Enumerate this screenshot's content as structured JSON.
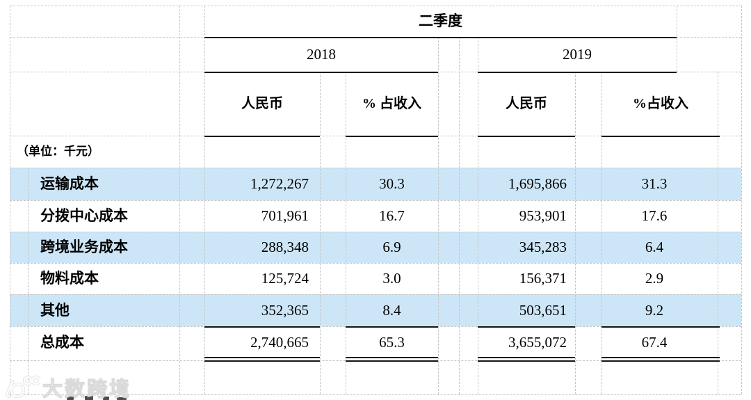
{
  "table": {
    "quarter_header": "二季度",
    "year_left": "2018",
    "year_right": "2019",
    "unit_note": "（单位：千元）",
    "columns": {
      "rmb_2018": "人民币",
      "pct_2018": "% 占收入",
      "rmb_2019": "人民币",
      "pct_2019": "%占收入"
    },
    "rows": [
      {
        "label": "运输成本",
        "rmb_2018": "1,272,267",
        "pct_2018": "30.3",
        "rmb_2019": "1,695,866",
        "pct_2019": "31.3",
        "highlight": true,
        "total": false
      },
      {
        "label": "分拨中心成本",
        "rmb_2018": "701,961",
        "pct_2018": "16.7",
        "rmb_2019": "953,901",
        "pct_2019": "17.6",
        "highlight": false,
        "total": false
      },
      {
        "label": "跨境业务成本",
        "rmb_2018": "288,348",
        "pct_2018": "6.9",
        "rmb_2019": "345,283",
        "pct_2019": "6.4",
        "highlight": true,
        "total": false
      },
      {
        "label": "物料成本",
        "rmb_2018": "125,724",
        "pct_2018": "3.0",
        "rmb_2019": "156,371",
        "pct_2019": "2.9",
        "highlight": false,
        "total": false
      },
      {
        "label": "其他",
        "rmb_2018": "352,365",
        "pct_2018": "8.4",
        "rmb_2019": "503,651",
        "pct_2019": "9.2",
        "highlight": true,
        "total": false
      },
      {
        "label": "总成本",
        "rmb_2018": "2,740,665",
        "pct_2018": "65.3",
        "rmb_2019": "3,655,072",
        "pct_2019": "67.4",
        "highlight": false,
        "total": true
      }
    ]
  },
  "watermark": {
    "text": "大数跨境"
  },
  "colors": {
    "highlight": "#cde6f7",
    "grid_dash": "#c4c4c4",
    "rule": "#141414"
  }
}
